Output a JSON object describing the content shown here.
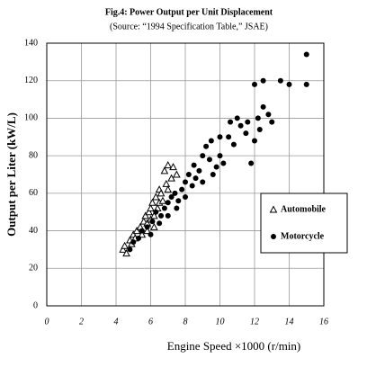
{
  "chart_data": {
    "type": "scatter",
    "title": "Fig.4: Power Output per Unit Displacement",
    "subtitle": "(Source: “1994 Specification Table,” JSAE)",
    "x_label": "Engine Speed ×1000 (r/min)",
    "y_label": "Output per Liter (kW/L)",
    "xlim": [
      0,
      16
    ],
    "xticks": [
      0,
      2,
      4,
      6,
      8,
      10,
      12,
      14,
      16
    ],
    "ylim": [
      0,
      140
    ],
    "yticks": [
      0,
      20,
      40,
      60,
      80,
      100,
      120,
      140
    ],
    "grid": true,
    "legend": "right",
    "series": [
      {
        "name": "Automobile",
        "marker": "triangle",
        "color": "#000000",
        "x": [
          4.4,
          4.5,
          4.6,
          4.8,
          4.9,
          5.0,
          5.1,
          5.2,
          5.4,
          5.5,
          5.6,
          5.7,
          5.8,
          5.9,
          6.0,
          6.0,
          6.1,
          6.2,
          6.3,
          6.4,
          6.5,
          6.5,
          6.6,
          6.7,
          6.8,
          6.9,
          7.0,
          7.0,
          7.2,
          7.3,
          7.5,
          6.2,
          5.8
        ],
        "values": [
          30,
          32,
          28,
          35,
          33,
          38,
          36,
          40,
          42,
          38,
          45,
          48,
          44,
          50,
          46,
          52,
          55,
          48,
          58,
          52,
          55,
          62,
          60,
          56,
          72,
          65,
          62,
          75,
          68,
          74,
          70,
          42,
          40
        ]
      },
      {
        "name": "Motorcycle",
        "marker": "circle",
        "color": "#000000",
        "x": [
          4.8,
          5.0,
          5.3,
          5.5,
          5.8,
          6.0,
          6.1,
          6.3,
          6.5,
          6.6,
          6.8,
          7.0,
          7.0,
          7.2,
          7.4,
          7.5,
          7.6,
          7.8,
          8.0,
          8.0,
          8.2,
          8.4,
          8.5,
          8.6,
          8.8,
          9.0,
          9.0,
          9.2,
          9.4,
          9.5,
          9.6,
          9.8,
          10.0,
          10.0,
          10.2,
          10.5,
          10.6,
          10.8,
          11.0,
          11.2,
          11.5,
          11.6,
          11.8,
          12.0,
          12.0,
          12.2,
          12.3,
          12.5,
          12.5,
          12.8,
          13.0,
          13.5,
          14.0,
          15.0,
          15.0
        ],
        "values": [
          30,
          34,
          36,
          40,
          42,
          38,
          45,
          50,
          44,
          48,
          52,
          55,
          48,
          58,
          60,
          52,
          56,
          62,
          58,
          66,
          70,
          64,
          75,
          68,
          72,
          80,
          66,
          85,
          78,
          88,
          70,
          74,
          80,
          90,
          76,
          90,
          98,
          86,
          100,
          96,
          92,
          98,
          76,
          88,
          118,
          100,
          94,
          106,
          120,
          102,
          98,
          120,
          118,
          134,
          118
        ]
      }
    ]
  }
}
